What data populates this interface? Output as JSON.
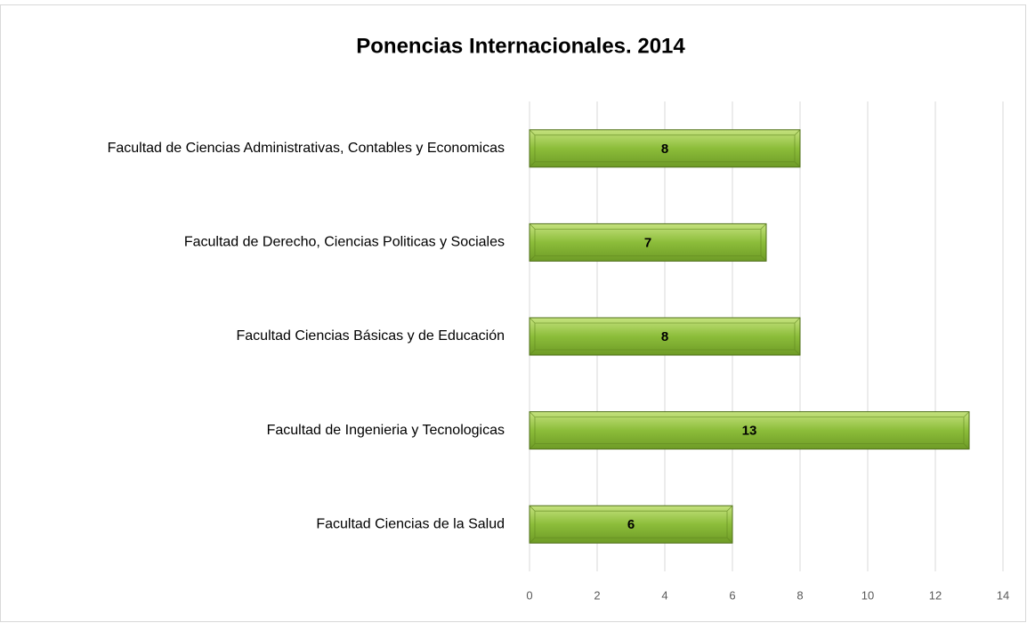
{
  "chart_data": {
    "type": "bar",
    "horizontal": true,
    "title": "Ponencias Internacionales. 2014",
    "categories": [
      "Facultad de Ciencias Administrativas, Contables y Economicas",
      "Facultad de Derecho, Ciencias Politicas y Sociales",
      "Facultad Ciencias Básicas y de Educación",
      "Facultad de Ingenieria y Tecnologicas",
      "Facultad Ciencias de la Salud"
    ],
    "values": [
      8,
      7,
      8,
      13,
      6
    ],
    "color": "#8cbd3a",
    "xlim": [
      0,
      14
    ],
    "xticks": [
      0,
      2,
      4,
      6,
      8,
      10,
      12,
      14
    ],
    "grid": true
  }
}
